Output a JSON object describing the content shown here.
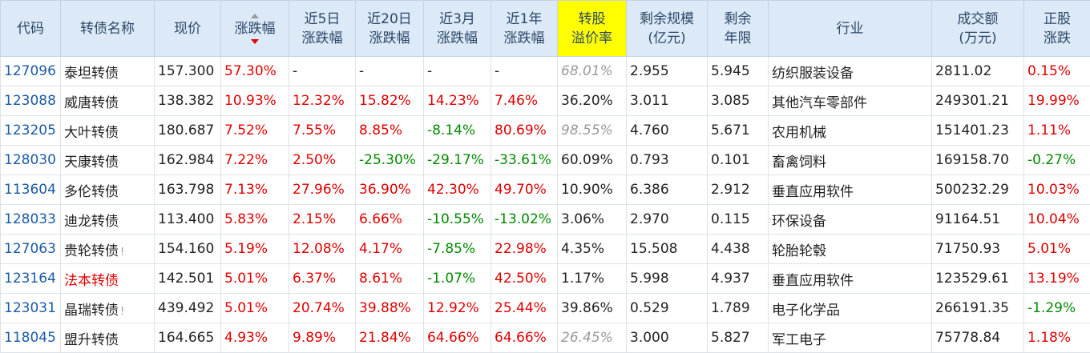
{
  "table": {
    "sort_column": 3,
    "highlight_column": 8,
    "headers": [
      "代码",
      "转债名称",
      "现价",
      "涨跌幅",
      "近5日\n涨跌幅",
      "近20日\n涨跌幅",
      "近3月\n涨跌幅",
      "近1年\n涨跌幅",
      "转股\n溢价率",
      "剩余规模\n(亿元)",
      "剩余\n年限",
      "行业",
      "成交额\n(万元)",
      "正股\n涨跌"
    ],
    "rows": [
      {
        "cells": [
          "127096",
          "泰坦转债",
          "157.300",
          "57.30%",
          "-",
          "-",
          "-",
          "-",
          "68.01%",
          "2.955",
          "5.945",
          "纺织服装设备",
          "2811.02",
          "0.15%"
        ],
        "premium_italic": true
      },
      {
        "cells": [
          "123088",
          "威唐转债",
          "138.382",
          "10.93%",
          "12.32%",
          "15.82%",
          "14.23%",
          "7.46%",
          "36.20%",
          "3.011",
          "3.085",
          "其他汽车零部件",
          "249301.21",
          "19.99%"
        ]
      },
      {
        "cells": [
          "123205",
          "大叶转债",
          "180.687",
          "7.52%",
          "7.55%",
          "8.85%",
          "-8.14%",
          "80.69%",
          "98.55%",
          "4.760",
          "5.671",
          "农用机械",
          "151401.23",
          "1.11%"
        ],
        "premium_italic": true
      },
      {
        "cells": [
          "128030",
          "天康转债",
          "162.984",
          "7.22%",
          "2.50%",
          "-25.30%",
          "-29.17%",
          "-33.61%",
          "60.09%",
          "0.793",
          "0.101",
          "畜禽饲料",
          "169158.70",
          "-0.27%"
        ]
      },
      {
        "cells": [
          "113604",
          "多伦转债",
          "163.798",
          "7.13%",
          "27.96%",
          "36.90%",
          "42.30%",
          "49.70%",
          "10.90%",
          "6.386",
          "2.912",
          "垂直应用软件",
          "500232.29",
          "10.03%"
        ]
      },
      {
        "cells": [
          "128033",
          "迪龙转债",
          "113.400",
          "5.83%",
          "2.15%",
          "6.66%",
          "-10.55%",
          "-13.02%",
          "3.06%",
          "2.970",
          "0.115",
          "环保设备",
          "91164.51",
          "10.04%"
        ]
      },
      {
        "cells": [
          "127063",
          "贵轮转债",
          "154.160",
          "5.19%",
          "12.08%",
          "4.17%",
          "-7.85%",
          "22.98%",
          "4.35%",
          "15.508",
          "4.438",
          "轮胎轮毂",
          "71750.93",
          "5.01%"
        ],
        "name_note": "!"
      },
      {
        "cells": [
          "123164",
          "法本转债",
          "142.501",
          "5.01%",
          "6.37%",
          "8.61%",
          "-1.07%",
          "42.50%",
          "1.17%",
          "5.998",
          "4.937",
          "垂直应用软件",
          "123529.61",
          "13.19%"
        ],
        "name_color": "#e00000"
      },
      {
        "cells": [
          "123031",
          "晶瑞转债",
          "439.492",
          "5.01%",
          "20.74%",
          "39.88%",
          "12.92%",
          "25.44%",
          "39.86%",
          "0.529",
          "1.789",
          "电子化学品",
          "266191.35",
          "-1.29%"
        ],
        "name_note": "!"
      },
      {
        "cells": [
          "118045",
          "盟升转债",
          "164.665",
          "4.93%",
          "9.89%",
          "21.84%",
          "64.66%",
          "64.66%",
          "26.45%",
          "3.000",
          "5.827",
          "军工电子",
          "75778.84",
          "1.18%"
        ],
        "premium_italic": true
      }
    ]
  }
}
